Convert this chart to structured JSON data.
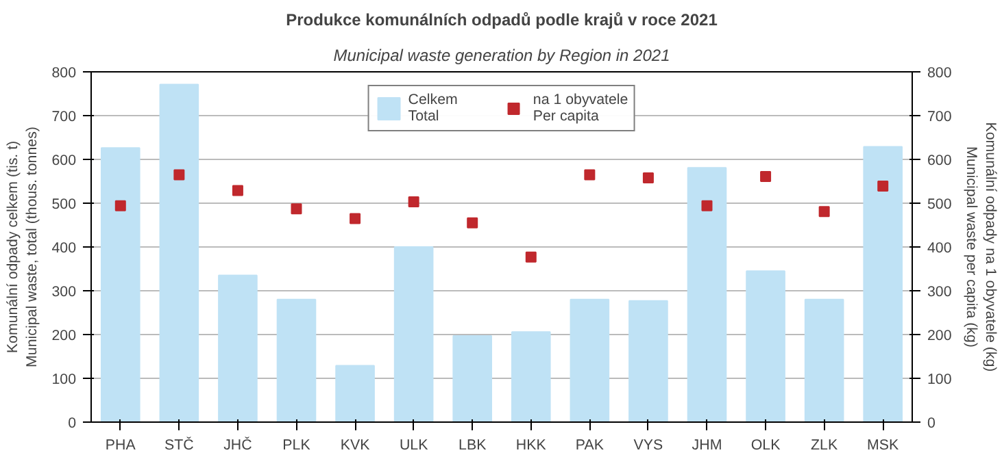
{
  "chart_data": {
    "type": "bar",
    "title": "Produkce komunálních odpadů podle krajů v roce 2021",
    "subtitle": "Municipal waste generation by Region in 2021",
    "ylabel": "Komunální odpady celkem (tis. t)\nMunicipal waste, total (thous. tonnes)",
    "y2label": "Komunální odpady na 1 obyvatele (kg)\nMunicipal waste per capita (kg)",
    "categories": [
      "PHA",
      "STČ",
      "JHČ",
      "PLK",
      "KVK",
      "ULK",
      "LBK",
      "HKK",
      "PAK",
      "VYS",
      "JHM",
      "OLK",
      "ZLK",
      "MSK"
    ],
    "series": [
      {
        "name": "Celkem\nTotal",
        "color": "#bfe2f5",
        "values": [
          626,
          771,
          335,
          280,
          129,
          400,
          197,
          206,
          280,
          277,
          581,
          345,
          280,
          629
        ]
      },
      {
        "name": "na 1 obyvatele\nPer capita",
        "type": "scatter",
        "axis": "y2",
        "marker": "square",
        "color": "#c0282d",
        "values": [
          494,
          565,
          529,
          487,
          465,
          503,
          455,
          377,
          565,
          558,
          494,
          561,
          481,
          539
        ]
      }
    ],
    "ylim": [
      0,
      800
    ],
    "yticks": [
      0,
      100,
      200,
      300,
      400,
      500,
      600,
      700,
      800
    ],
    "y2lim": [
      0,
      800
    ],
    "y2ticks": [
      0,
      100,
      200,
      300,
      400,
      500,
      600,
      700,
      800
    ],
    "grid": "y",
    "legend": "top"
  }
}
